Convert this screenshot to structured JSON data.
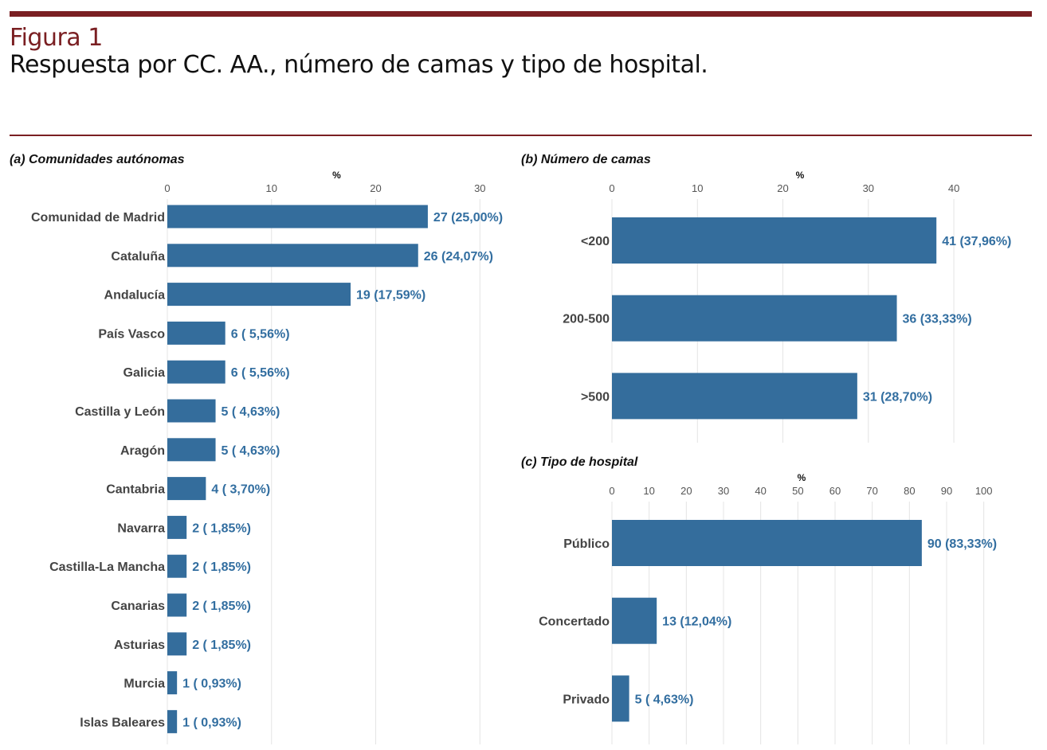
{
  "figure": {
    "label": "Figura 1",
    "title": "Respuesta por CC. AA., número de camas y tipo de hospital."
  },
  "colors": {
    "accent": "#7a1f22",
    "bar": "#346d9c",
    "value_label": "#326ea0"
  },
  "chart_data": [
    {
      "id": "a",
      "type": "bar",
      "orientation": "horizontal",
      "title": "(a) Comunidades autónomas",
      "xlabel": "%",
      "xlim": [
        0,
        32.5
      ],
      "ticks": [
        0,
        10,
        20,
        30
      ],
      "categories": [
        "Comunidad de Madrid",
        "Cataluña",
        "Andalucía",
        "País Vasco",
        "Galicia",
        "Castilla y León",
        "Aragón",
        "Cantabria",
        "Navarra",
        "Castilla-La Mancha",
        "Canarias",
        "Asturias",
        "Murcia",
        "Islas Baleares"
      ],
      "values": [
        25.0,
        24.07,
        17.59,
        5.56,
        5.56,
        4.63,
        4.63,
        3.7,
        1.85,
        1.85,
        1.85,
        1.85,
        0.93,
        0.93
      ],
      "counts": [
        27,
        26,
        19,
        6,
        6,
        5,
        5,
        4,
        2,
        2,
        2,
        2,
        1,
        1
      ],
      "labels": [
        "27 (25,00%)",
        "26 (24,07%)",
        "19 (17,59%)",
        "6 ( 5,56%)",
        "6 ( 5,56%)",
        "5 ( 4,63%)",
        "5 ( 4,63%)",
        "4 ( 3,70%)",
        "2 ( 1,85%)",
        "2 ( 1,85%)",
        "2 ( 1,85%)",
        "2 ( 1,85%)",
        "1 ( 0,93%)",
        "1 ( 0,93%)"
      ]
    },
    {
      "id": "b",
      "type": "bar",
      "orientation": "horizontal",
      "title": "(b) Número de camas",
      "xlabel": "%",
      "xlim": [
        0,
        44
      ],
      "ticks": [
        0,
        10,
        20,
        30,
        40
      ],
      "categories": [
        "<200",
        "200-500",
        ">500"
      ],
      "values": [
        37.96,
        33.33,
        28.7
      ],
      "counts": [
        41,
        36,
        31
      ],
      "labels": [
        "41 (37,96%)",
        "36 (33,33%)",
        "31 (28,70%)"
      ]
    },
    {
      "id": "c",
      "type": "bar",
      "orientation": "horizontal",
      "title": "(c) Tipo de hospital",
      "xlabel": "%",
      "xlim": [
        0,
        102
      ],
      "ticks": [
        0,
        10,
        20,
        30,
        40,
        50,
        60,
        70,
        80,
        90,
        100
      ],
      "categories": [
        "Público",
        "Concertado",
        "Privado"
      ],
      "values": [
        83.33,
        12.04,
        4.63
      ],
      "counts": [
        90,
        13,
        5
      ],
      "labels": [
        "90 (83,33%)",
        "13 (12,04%)",
        "5 ( 4,63%)"
      ]
    }
  ]
}
